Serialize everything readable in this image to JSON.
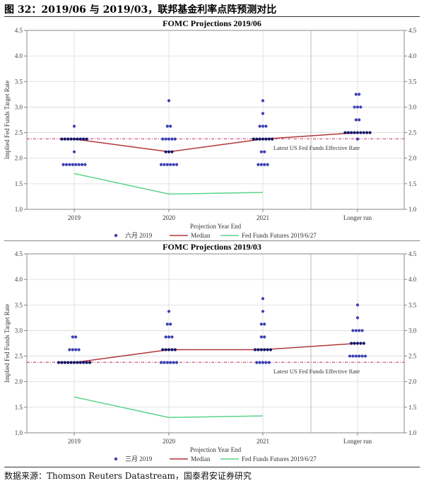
{
  "figure_title": "图 32：2019/06 与 2019/03，联邦基金利率点阵预测对比",
  "source": "数据来源：Thomson Reuters Datastream，国泰君安证券研究",
  "colors": {
    "dots": "#3b3fb3",
    "dots_dark": "#141468",
    "median": "#b0373a",
    "futures": "#5ad48a",
    "effective_rate": "#c0285a",
    "grid": "#d9d9d9"
  },
  "chart_data": [
    {
      "type": "scatter",
      "title": "FOMC Projections 2019/06",
      "xlabel": "Projection Year End",
      "ylabel": "Implied Fed Funds Target Rate",
      "categories": [
        "2019",
        "2020",
        "2021",
        "Longer run"
      ],
      "ylim": [
        1.0,
        4.5
      ],
      "yticks": [
        "1.0",
        "1.5",
        "2.0",
        "2.5",
        "3.0",
        "3.5",
        "4.0",
        "4.5"
      ],
      "grid": true,
      "legend_placement": "bottom",
      "dots_series_name": "六月 2019",
      "dots": [
        [
          [
            2.625,
            1
          ],
          [
            2.375,
            9
          ],
          [
            2.125,
            1
          ],
          [
            1.875,
            8
          ]
        ],
        [
          [
            3.125,
            1
          ],
          [
            2.625,
            2
          ],
          [
            2.375,
            5
          ],
          [
            2.125,
            3
          ],
          [
            1.875,
            6
          ]
        ],
        [
          [
            3.125,
            1
          ],
          [
            2.875,
            1
          ],
          [
            2.625,
            3
          ],
          [
            2.375,
            7
          ],
          [
            2.125,
            2
          ],
          [
            1.875,
            4
          ]
        ],
        [
          [
            3.25,
            2
          ],
          [
            3.0,
            3
          ],
          [
            2.75,
            2
          ],
          [
            2.5,
            9
          ],
          [
            2.375,
            1
          ]
        ]
      ],
      "median": {
        "name": "Median",
        "values": [
          2.375,
          2.125,
          2.375,
          2.5
        ]
      },
      "futures": {
        "name": "Fed Funds Futures 2019/6/27",
        "values": [
          1.7,
          1.3,
          1.33
        ]
      },
      "effective_rate": {
        "value": 2.38,
        "label": "Latest US Fed Funds Effective Rate",
        "label_side": "below"
      }
    },
    {
      "type": "scatter",
      "title": "FOMC Projections 2019/03",
      "xlabel": "Projection Year End",
      "ylabel": "Implied Fed Funds Target Rate",
      "categories": [
        "2019",
        "2020",
        "2021",
        "Longer run"
      ],
      "ylim": [
        1.0,
        4.5
      ],
      "yticks": [
        "1.0",
        "1.5",
        "2.0",
        "2.5",
        "3.0",
        "3.5",
        "4.0",
        "4.5"
      ],
      "grid": true,
      "legend_placement": "bottom",
      "dots_series_name": "三月 2019",
      "dots": [
        [
          [
            2.875,
            2
          ],
          [
            2.625,
            4
          ],
          [
            2.375,
            11
          ]
        ],
        [
          [
            3.375,
            1
          ],
          [
            3.125,
            2
          ],
          [
            2.875,
            3
          ],
          [
            2.625,
            5
          ],
          [
            2.375,
            6
          ]
        ],
        [
          [
            3.625,
            1
          ],
          [
            3.375,
            1
          ],
          [
            3.125,
            2
          ],
          [
            2.875,
            2
          ],
          [
            2.625,
            6
          ],
          [
            2.375,
            5
          ]
        ],
        [
          [
            3.5,
            1
          ],
          [
            3.25,
            1
          ],
          [
            3.0,
            4
          ],
          [
            2.75,
            5
          ],
          [
            2.5,
            6
          ]
        ]
      ],
      "median": {
        "name": "Median",
        "values": [
          2.375,
          2.625,
          2.625,
          2.75
        ]
      },
      "futures": {
        "name": "Fed Funds Futures 2019/6/27",
        "values": [
          1.7,
          1.3,
          1.33
        ]
      },
      "effective_rate": {
        "value": 2.38,
        "label": "Latest US Fed Funds Effective Rate",
        "label_side": "below"
      }
    }
  ]
}
